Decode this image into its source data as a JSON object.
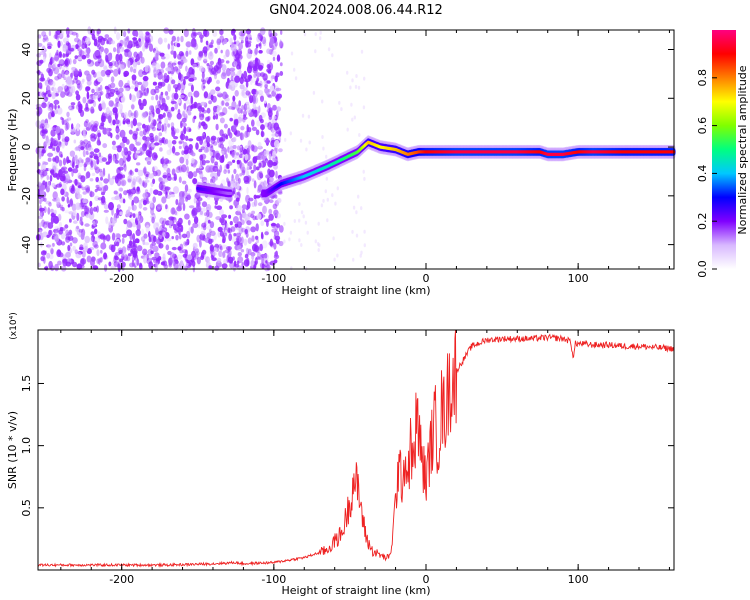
{
  "figure": {
    "title": "GN04.2024.008.06.44.R12"
  },
  "chart_data": [
    {
      "type": "heatmap",
      "title": "GN04.2024.008.06.44.R12",
      "xlabel": "Height of straight line (km)",
      "ylabel": "Frequency (Hz)",
      "xlim": [
        -255,
        163
      ],
      "ylim": [
        -50,
        48
      ],
      "xticks": [
        -200,
        -100,
        0,
        100
      ],
      "yticks": [
        -40,
        -20,
        0,
        20,
        40
      ],
      "grid": false,
      "colorbar": {
        "label": "Normalized spectral amplitude",
        "range": [
          0.0,
          1.0
        ],
        "ticks": [
          "0.0",
          "0.2",
          "0.4",
          "0.6",
          "0.8"
        ],
        "colormap": [
          "#ffffff",
          "#d8b8ff",
          "#8000ff",
          "#0000ff",
          "#00c8ff",
          "#00ff80",
          "#80ff00",
          "#ffff00",
          "#ff8000",
          "#ff0000",
          "#ff0080"
        ]
      },
      "ridge": {
        "x": [
          -150,
          -140,
          -130,
          -105,
          -95,
          -80,
          -65,
          -55,
          -45,
          -38,
          -30,
          -20,
          -12,
          -5,
          0,
          20,
          40,
          60,
          75,
          80,
          90,
          100,
          110,
          130,
          150,
          163
        ],
        "freq": [
          -17,
          -18,
          -19,
          -19,
          -15,
          -12,
          -8,
          -5,
          -2,
          2,
          0,
          -1,
          -3,
          -2,
          -2,
          -2,
          -2,
          -2,
          -2,
          -3,
          -3,
          -2,
          -2,
          -2,
          -2,
          -2
        ],
        "amplitude": [
          0.25,
          0.2,
          0.15,
          0.2,
          0.3,
          0.4,
          0.45,
          0.5,
          0.55,
          0.75,
          0.7,
          0.75,
          0.8,
          0.85,
          0.9,
          0.95,
          0.95,
          0.95,
          0.9,
          0.95,
          0.95,
          0.9,
          0.95,
          0.9,
          0.9,
          0.9
        ]
      },
      "noise_region": {
        "x_from": -255,
        "x_to": -95,
        "level": 0.15
      }
    },
    {
      "type": "line",
      "xlabel": "Height of straight line (km)",
      "ylabel": "SNR (10 * v/v)",
      "multiplier": "(x10⁴)",
      "xlim": [
        -255,
        163
      ],
      "ylim": [
        0,
        1.93
      ],
      "xticks": [
        -200,
        -100,
        0,
        100
      ],
      "yticks": [
        0.5,
        1.0,
        1.5
      ],
      "ytick_labels": [
        "0.5",
        "1.0",
        "1.5"
      ],
      "grid": false,
      "series": [
        {
          "color": "#ee2222",
          "x": [
            -255,
            -230,
            -200,
            -170,
            -140,
            -125,
            -120,
            -100,
            -80,
            -65,
            -55,
            -50,
            -47,
            -44,
            -42,
            -40,
            -38,
            -35,
            -30,
            -27,
            -24,
            -22,
            -20,
            -18,
            -16,
            -14,
            -12,
            -10,
            -8,
            -6,
            -4,
            -2,
            0,
            2,
            4,
            6,
            8,
            10,
            12,
            15,
            18,
            20,
            25,
            30,
            40,
            50,
            60,
            70,
            80,
            90,
            95,
            97,
            98,
            100,
            110,
            120,
            130,
            140,
            150,
            163
          ],
          "y": [
            0.04,
            0.04,
            0.04,
            0.04,
            0.05,
            0.06,
            0.05,
            0.06,
            0.1,
            0.16,
            0.3,
            0.55,
            0.75,
            0.6,
            0.45,
            0.3,
            0.22,
            0.15,
            0.12,
            0.1,
            0.1,
            0.25,
            0.55,
            0.85,
            0.7,
            0.9,
            0.75,
            1.0,
            0.8,
            1.3,
            1.0,
            0.85,
            0.7,
            0.9,
            1.05,
            1.2,
            1.0,
            1.3,
            1.25,
            1.45,
            1.55,
            1.6,
            1.7,
            1.8,
            1.85,
            1.86,
            1.86,
            1.86,
            1.87,
            1.86,
            1.84,
            1.7,
            1.82,
            1.82,
            1.81,
            1.81,
            1.8,
            1.8,
            1.79,
            1.78
          ]
        }
      ]
    }
  ]
}
